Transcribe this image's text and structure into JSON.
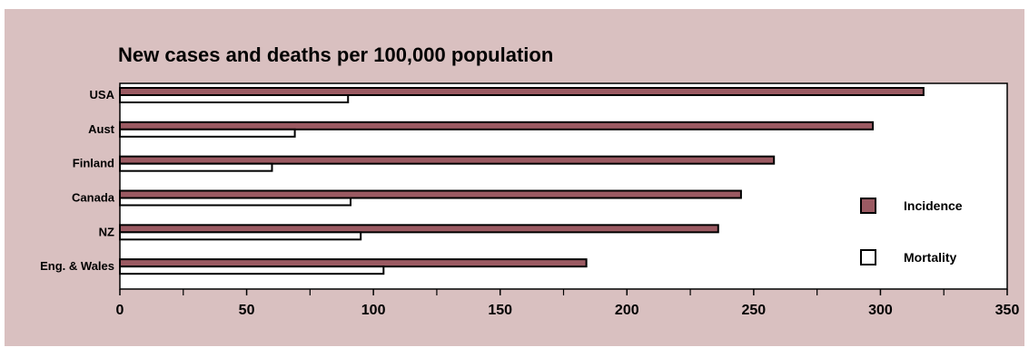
{
  "chart_data": {
    "type": "bar",
    "orientation": "horizontal",
    "title": "New cases and deaths per 100,000 population",
    "categories": [
      "USA",
      "Aust",
      "Finland",
      "Canada",
      "NZ",
      "Eng. & Wales"
    ],
    "series": [
      {
        "name": "Incidence",
        "values": [
          317,
          297,
          258,
          245,
          236,
          184
        ],
        "color": "#9b5a62"
      },
      {
        "name": "Mortality",
        "values": [
          90,
          69,
          60,
          91,
          95,
          104
        ],
        "color": "#ffffff"
      }
    ],
    "xlim": [
      0,
      350
    ],
    "xticks": [
      0,
      50,
      100,
      150,
      200,
      250,
      300,
      350
    ],
    "grid": false,
    "legend_position": "right"
  }
}
